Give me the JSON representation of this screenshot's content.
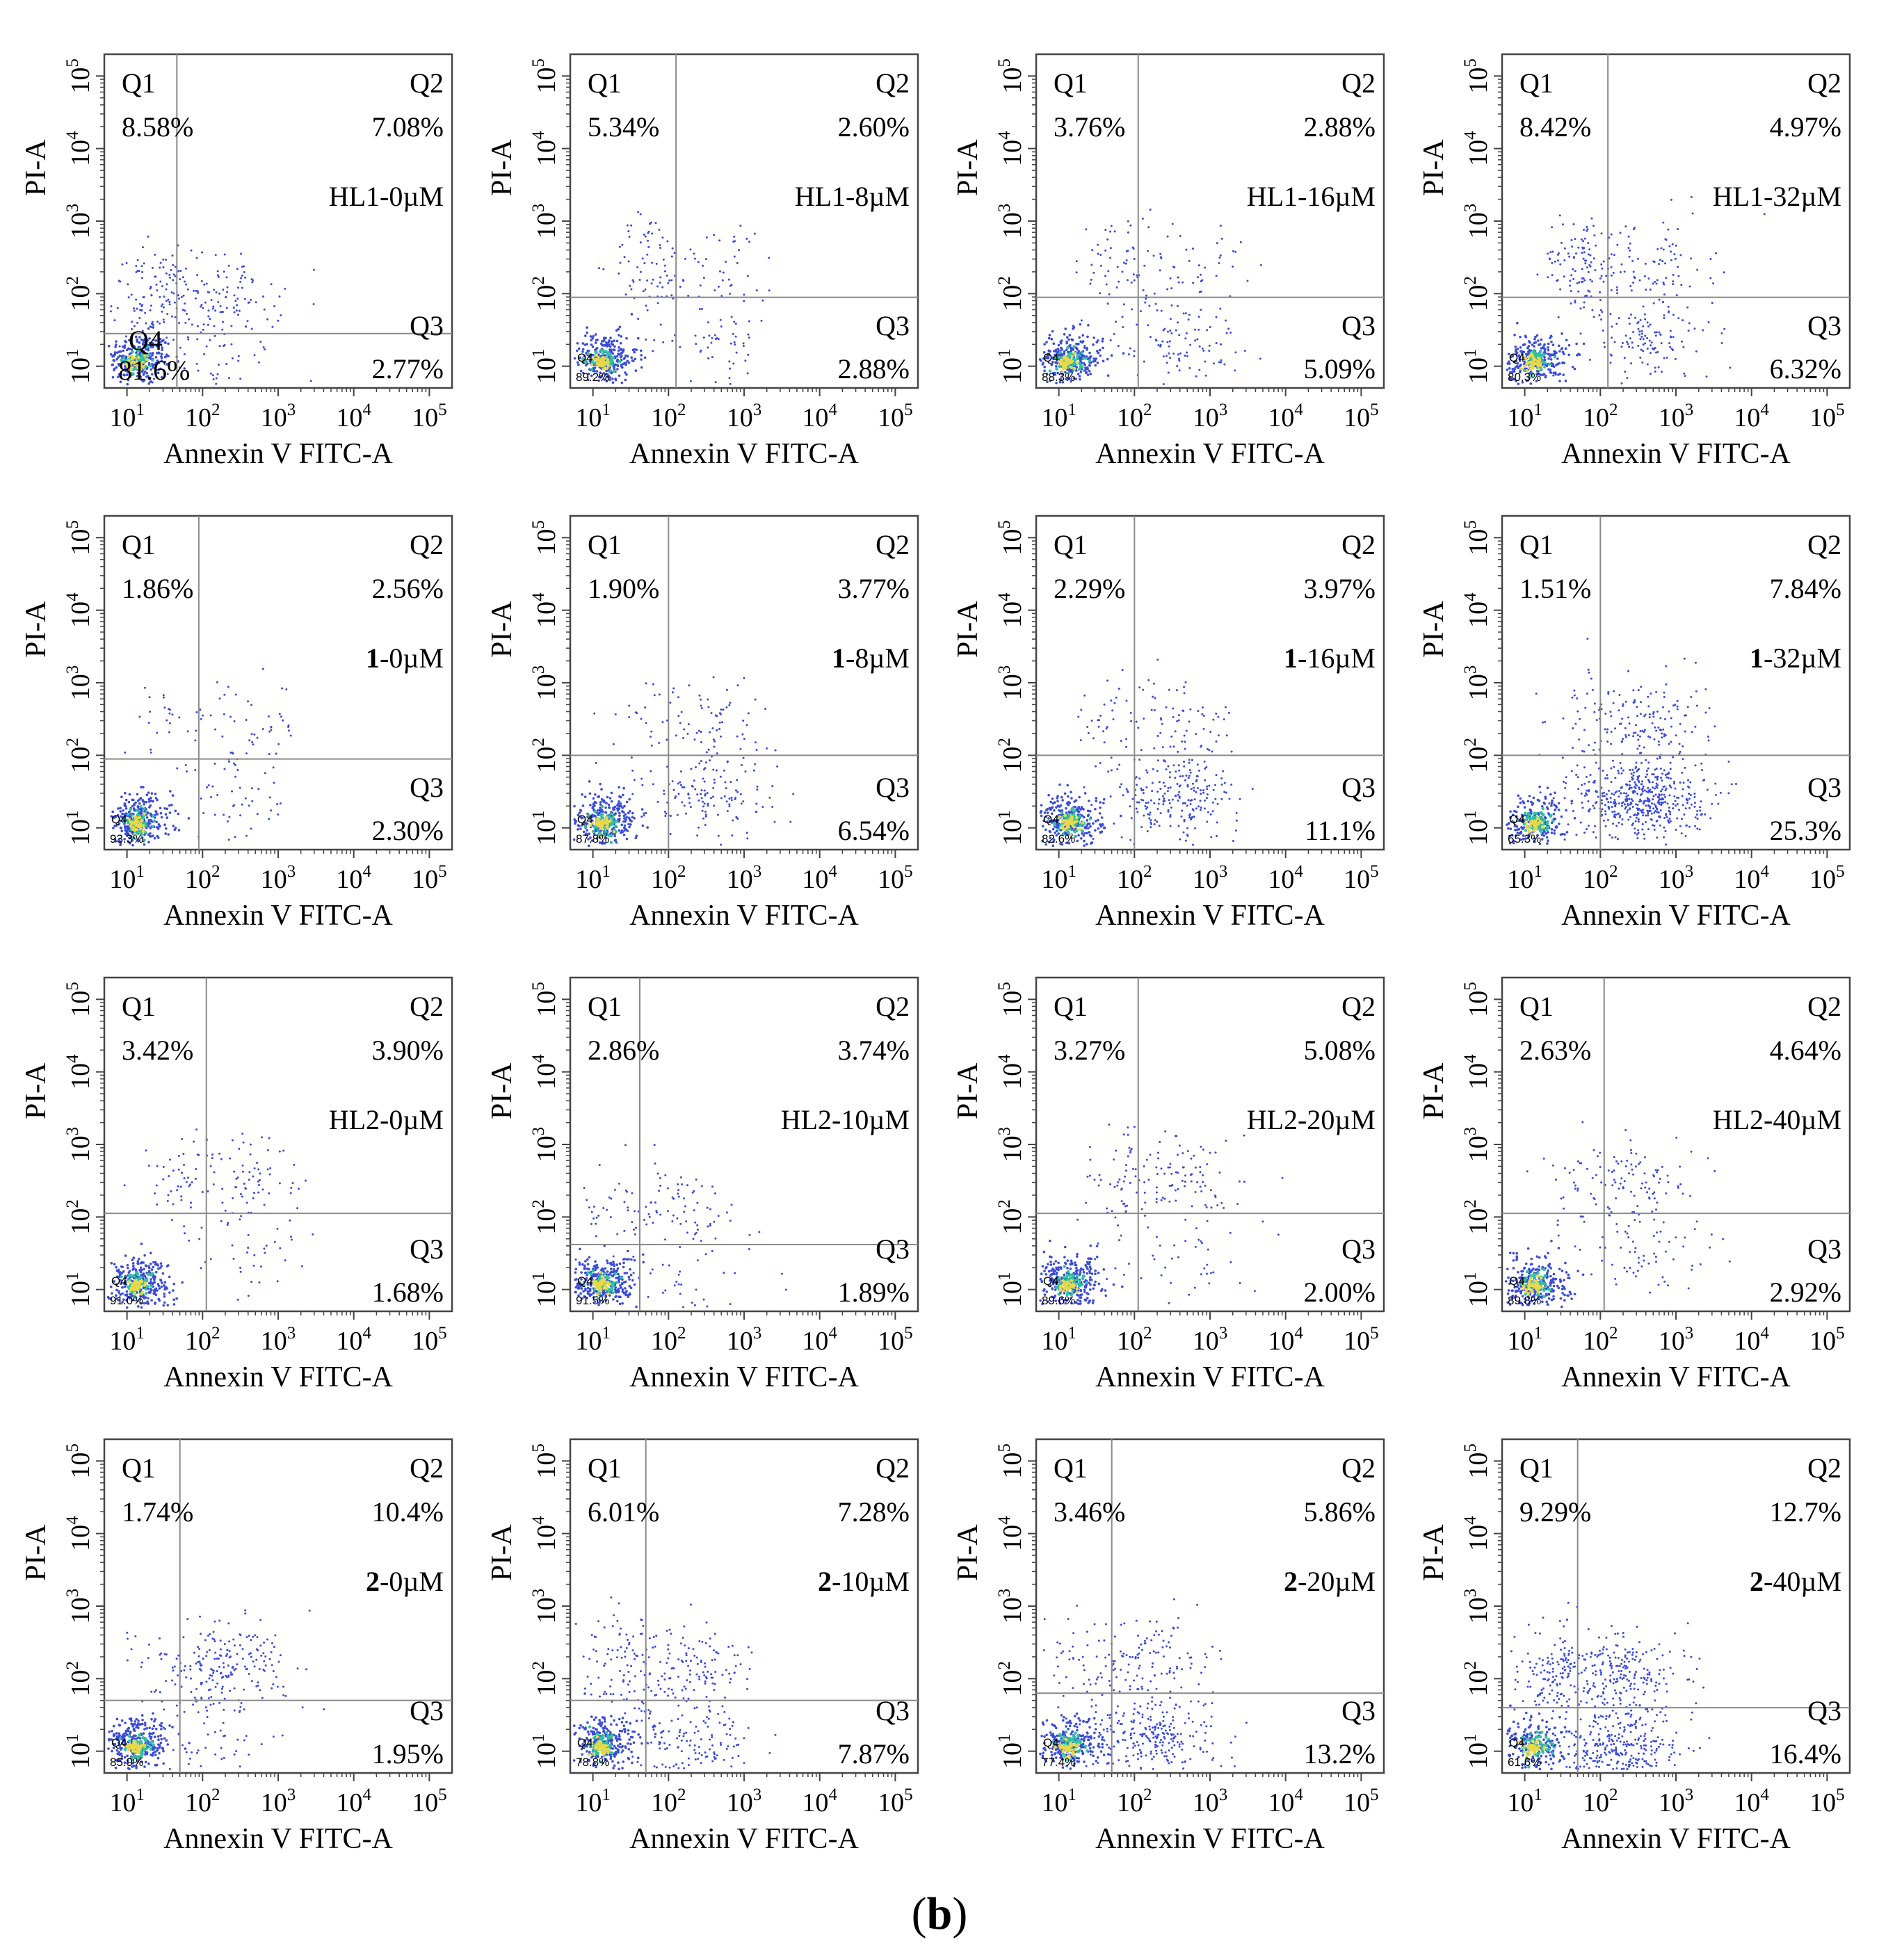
{
  "figure_label": {
    "open": "(",
    "letter": "b",
    "close": ")"
  },
  "chart_data": [
    {
      "type": "scatter",
      "panel": "HL1-0µM",
      "compound_prefix": "HL1",
      "compound_bold": false,
      "dose": "0µM",
      "xlabel": "Annexin V FITC-A",
      "ylabel": "PI-A",
      "x_ticks": [
        "10^1",
        "10^2",
        "10^3",
        "10^4",
        "10^5"
      ],
      "y_ticks": [
        "10^1",
        "10^2",
        "10^3",
        "10^4",
        "10^5"
      ],
      "xlim": [
        0.7,
        5.3
      ],
      "ylim": [
        0.7,
        5.3
      ],
      "gate": {
        "x": 1.66,
        "y": 1.45
      },
      "quadrants": {
        "Q1": "8.58%",
        "Q2": "7.08%",
        "Q3": "2.77%",
        "Q4": "81.6%"
      },
      "q4_large": true
    },
    {
      "type": "scatter",
      "panel": "HL1-8µM",
      "compound_prefix": "HL1",
      "compound_bold": false,
      "dose": "8µM",
      "xlabel": "Annexin V FITC-A",
      "ylabel": "PI-A",
      "x_ticks": [
        "10^1",
        "10^2",
        "10^3",
        "10^4",
        "10^5"
      ],
      "y_ticks": [
        "10^1",
        "10^2",
        "10^3",
        "10^4",
        "10^5"
      ],
      "xlim": [
        0.7,
        5.3
      ],
      "ylim": [
        0.7,
        5.3
      ],
      "gate": {
        "x": 2.1,
        "y": 1.95
      },
      "quadrants": {
        "Q1": "5.34%",
        "Q2": "2.60%",
        "Q3": "2.88%",
        "Q4": "89.2%"
      },
      "q4_large": false
    },
    {
      "type": "scatter",
      "panel": "HL1-16µM",
      "compound_prefix": "HL1",
      "compound_bold": false,
      "dose": "16µM",
      "xlabel": "Annexin V FITC-A",
      "ylabel": "PI-A",
      "x_ticks": [
        "10^1",
        "10^2",
        "10^3",
        "10^4",
        "10^5"
      ],
      "y_ticks": [
        "10^1",
        "10^2",
        "10^3",
        "10^4",
        "10^5"
      ],
      "xlim": [
        0.7,
        5.3
      ],
      "ylim": [
        0.7,
        5.3
      ],
      "gate": {
        "x": 2.05,
        "y": 1.95
      },
      "quadrants": {
        "Q1": "3.76%",
        "Q2": "2.88%",
        "Q3": "5.09%",
        "Q4": "88.3%"
      },
      "q4_large": false
    },
    {
      "type": "scatter",
      "panel": "HL1-32µM",
      "compound_prefix": "HL1",
      "compound_bold": false,
      "dose": "32µM",
      "xlabel": "Annexin V FITC-A",
      "ylabel": "PI-A",
      "x_ticks": [
        "10^1",
        "10^2",
        "10^3",
        "10^4",
        "10^5"
      ],
      "y_ticks": [
        "10^1",
        "10^2",
        "10^3",
        "10^4",
        "10^5"
      ],
      "xlim": [
        0.7,
        5.3
      ],
      "ylim": [
        0.7,
        5.3
      ],
      "gate": {
        "x": 2.1,
        "y": 1.95
      },
      "quadrants": {
        "Q1": "8.42%",
        "Q2": "4.97%",
        "Q3": "6.32%",
        "Q4": "80.3%"
      },
      "q4_large": false
    },
    {
      "type": "scatter",
      "panel": "1-0µM",
      "compound_prefix": "1",
      "compound_bold": true,
      "dose": "0µM",
      "xlabel": "Annexin V FITC-A",
      "ylabel": "PI-A",
      "x_ticks": [
        "10^1",
        "10^2",
        "10^3",
        "10^4",
        "10^5"
      ],
      "y_ticks": [
        "10^1",
        "10^2",
        "10^3",
        "10^4",
        "10^5"
      ],
      "xlim": [
        0.7,
        5.3
      ],
      "ylim": [
        0.7,
        5.3
      ],
      "gate": {
        "x": 1.95,
        "y": 1.95
      },
      "quadrants": {
        "Q1": "1.86%",
        "Q2": "2.56%",
        "Q3": "2.30%",
        "Q4": "93.3%"
      },
      "q4_large": false
    },
    {
      "type": "scatter",
      "panel": "1-8µM",
      "compound_prefix": "1",
      "compound_bold": true,
      "dose": "8µM",
      "xlabel": "Annexin V FITC-A",
      "ylabel": "PI-A",
      "x_ticks": [
        "10^1",
        "10^2",
        "10^3",
        "10^4",
        "10^5"
      ],
      "y_ticks": [
        "10^1",
        "10^2",
        "10^3",
        "10^4",
        "10^5"
      ],
      "xlim": [
        0.7,
        5.3
      ],
      "ylim": [
        0.7,
        5.3
      ],
      "gate": {
        "x": 2.0,
        "y": 2.0
      },
      "quadrants": {
        "Q1": "1.90%",
        "Q2": "3.77%",
        "Q3": "6.54%",
        "Q4": "87.8%"
      },
      "q4_large": false
    },
    {
      "type": "scatter",
      "panel": "1-16µM",
      "compound_prefix": "1",
      "compound_bold": true,
      "dose": "16µM",
      "xlabel": "Annexin V FITC-A",
      "ylabel": "PI-A",
      "x_ticks": [
        "10^1",
        "10^2",
        "10^3",
        "10^4",
        "10^5"
      ],
      "y_ticks": [
        "10^1",
        "10^2",
        "10^3",
        "10^4",
        "10^5"
      ],
      "xlim": [
        0.7,
        5.3
      ],
      "ylim": [
        0.7,
        5.3
      ],
      "gate": {
        "x": 2.0,
        "y": 2.0
      },
      "quadrants": {
        "Q1": "2.29%",
        "Q2": "3.97%",
        "Q3": "11.1%",
        "Q4": "82.6%"
      },
      "q4_large": false
    },
    {
      "type": "scatter",
      "panel": "1-32µM",
      "compound_prefix": "1",
      "compound_bold": true,
      "dose": "32µM",
      "xlabel": "Annexin V FITC-A",
      "ylabel": "PI-A",
      "x_ticks": [
        "10^1",
        "10^2",
        "10^3",
        "10^4",
        "10^5"
      ],
      "y_ticks": [
        "10^1",
        "10^2",
        "10^3",
        "10^4",
        "10^5"
      ],
      "xlim": [
        0.7,
        5.3
      ],
      "ylim": [
        0.7,
        5.3
      ],
      "gate": {
        "x": 2.0,
        "y": 2.0
      },
      "quadrants": {
        "Q1": "1.51%",
        "Q2": "7.84%",
        "Q3": "25.3%",
        "Q4": "65.3%"
      },
      "q4_large": false
    },
    {
      "type": "scatter",
      "panel": "HL2-0µM",
      "compound_prefix": "HL2",
      "compound_bold": false,
      "dose": "0µM",
      "xlabel": "Annexin V FITC-A",
      "ylabel": "PI-A",
      "x_ticks": [
        "10^1",
        "10^2",
        "10^3",
        "10^4",
        "10^5"
      ],
      "y_ticks": [
        "10^1",
        "10^2",
        "10^3",
        "10^4",
        "10^5"
      ],
      "xlim": [
        0.7,
        5.3
      ],
      "ylim": [
        0.7,
        5.3
      ],
      "gate": {
        "x": 2.05,
        "y": 2.05
      },
      "quadrants": {
        "Q1": "3.42%",
        "Q2": "3.90%",
        "Q3": "1.68%",
        "Q4": "91.0%"
      },
      "q4_large": false
    },
    {
      "type": "scatter",
      "panel": "HL2-10µM",
      "compound_prefix": "HL2",
      "compound_bold": false,
      "dose": "10µM",
      "xlabel": "Annexin V FITC-A",
      "ylabel": "PI-A",
      "x_ticks": [
        "10^1",
        "10^2",
        "10^3",
        "10^4",
        "10^5"
      ],
      "y_ticks": [
        "10^1",
        "10^2",
        "10^3",
        "10^4",
        "10^5"
      ],
      "xlim": [
        0.7,
        5.3
      ],
      "ylim": [
        0.7,
        5.3
      ],
      "gate": {
        "x": 1.62,
        "y": 1.62
      },
      "quadrants": {
        "Q1": "2.86%",
        "Q2": "3.74%",
        "Q3": "1.89%",
        "Q4": "91.5%"
      },
      "q4_large": false
    },
    {
      "type": "scatter",
      "panel": "HL2-20µM",
      "compound_prefix": "HL2",
      "compound_bold": false,
      "dose": "20µM",
      "xlabel": "Annexin V FITC-A",
      "ylabel": "PI-A",
      "x_ticks": [
        "10^1",
        "10^2",
        "10^3",
        "10^4",
        "10^5"
      ],
      "y_ticks": [
        "10^1",
        "10^2",
        "10^3",
        "10^4",
        "10^5"
      ],
      "xlim": [
        0.7,
        5.3
      ],
      "ylim": [
        0.7,
        5.3
      ],
      "gate": {
        "x": 2.05,
        "y": 2.05
      },
      "quadrants": {
        "Q1": "3.27%",
        "Q2": "5.08%",
        "Q3": "2.00%",
        "Q4": "89.6%"
      },
      "q4_large": false
    },
    {
      "type": "scatter",
      "panel": "HL2-40µM",
      "compound_prefix": "HL2",
      "compound_bold": false,
      "dose": "40µM",
      "xlabel": "Annexin V FITC-A",
      "ylabel": "PI-A",
      "x_ticks": [
        "10^1",
        "10^2",
        "10^3",
        "10^4",
        "10^5"
      ],
      "y_ticks": [
        "10^1",
        "10^2",
        "10^3",
        "10^4",
        "10^5"
      ],
      "xlim": [
        0.7,
        5.3
      ],
      "ylim": [
        0.7,
        5.3
      ],
      "gate": {
        "x": 2.05,
        "y": 2.05
      },
      "quadrants": {
        "Q1": "2.63%",
        "Q2": "4.64%",
        "Q3": "2.92%",
        "Q4": "89.8%"
      },
      "q4_large": false
    },
    {
      "type": "scatter",
      "panel": "2-0µM",
      "compound_prefix": "2",
      "compound_bold": true,
      "dose": "0µM",
      "xlabel": "Annexin V FITC-A",
      "ylabel": "PI-A",
      "x_ticks": [
        "10^1",
        "10^2",
        "10^3",
        "10^4",
        "10^5"
      ],
      "y_ticks": [
        "10^1",
        "10^2",
        "10^3",
        "10^4",
        "10^5"
      ],
      "xlim": [
        0.7,
        5.3
      ],
      "ylim": [
        0.7,
        5.3
      ],
      "gate": {
        "x": 1.7,
        "y": 1.7
      },
      "quadrants": {
        "Q1": "1.74%",
        "Q2": "10.4%",
        "Q3": "1.95%",
        "Q4": "85.9%"
      },
      "q4_large": false
    },
    {
      "type": "scatter",
      "panel": "2-10µM",
      "compound_prefix": "2",
      "compound_bold": true,
      "dose": "10µM",
      "xlabel": "Annexin V FITC-A",
      "ylabel": "PI-A",
      "x_ticks": [
        "10^1",
        "10^2",
        "10^3",
        "10^4",
        "10^5"
      ],
      "y_ticks": [
        "10^1",
        "10^2",
        "10^3",
        "10^4",
        "10^5"
      ],
      "xlim": [
        0.7,
        5.3
      ],
      "ylim": [
        0.7,
        5.3
      ],
      "gate": {
        "x": 1.7,
        "y": 1.7
      },
      "quadrants": {
        "Q1": "6.01%",
        "Q2": "7.28%",
        "Q3": "7.87%",
        "Q4": "78.8%"
      },
      "q4_large": false
    },
    {
      "type": "scatter",
      "panel": "2-20µM",
      "compound_prefix": "2",
      "compound_bold": true,
      "dose": "20µM",
      "xlabel": "Annexin V FITC-A",
      "ylabel": "PI-A",
      "x_ticks": [
        "10^1",
        "10^2",
        "10^3",
        "10^4",
        "10^5"
      ],
      "y_ticks": [
        "10^1",
        "10^2",
        "10^3",
        "10^4",
        "10^5"
      ],
      "xlim": [
        0.7,
        5.3
      ],
      "ylim": [
        0.7,
        5.3
      ],
      "gate": {
        "x": 1.7,
        "y": 1.8
      },
      "quadrants": {
        "Q1": "3.46%",
        "Q2": "5.86%",
        "Q3": "13.2%",
        "Q4": "77.4%"
      },
      "q4_large": false
    },
    {
      "type": "scatter",
      "panel": "2-40µM",
      "compound_prefix": "2",
      "compound_bold": true,
      "dose": "40µM",
      "xlabel": "Annexin V FITC-A",
      "ylabel": "PI-A",
      "x_ticks": [
        "10^1",
        "10^2",
        "10^3",
        "10^4",
        "10^5"
      ],
      "y_ticks": [
        "10^1",
        "10^2",
        "10^3",
        "10^4",
        "10^5"
      ],
      "xlim": [
        0.7,
        5.3
      ],
      "ylim": [
        0.7,
        5.3
      ],
      "gate": {
        "x": 1.7,
        "y": 1.6
      },
      "quadrants": {
        "Q1": "9.29%",
        "Q2": "12.7%",
        "Q3": "16.4%",
        "Q4": "61.6%"
      },
      "q4_large": false
    }
  ]
}
